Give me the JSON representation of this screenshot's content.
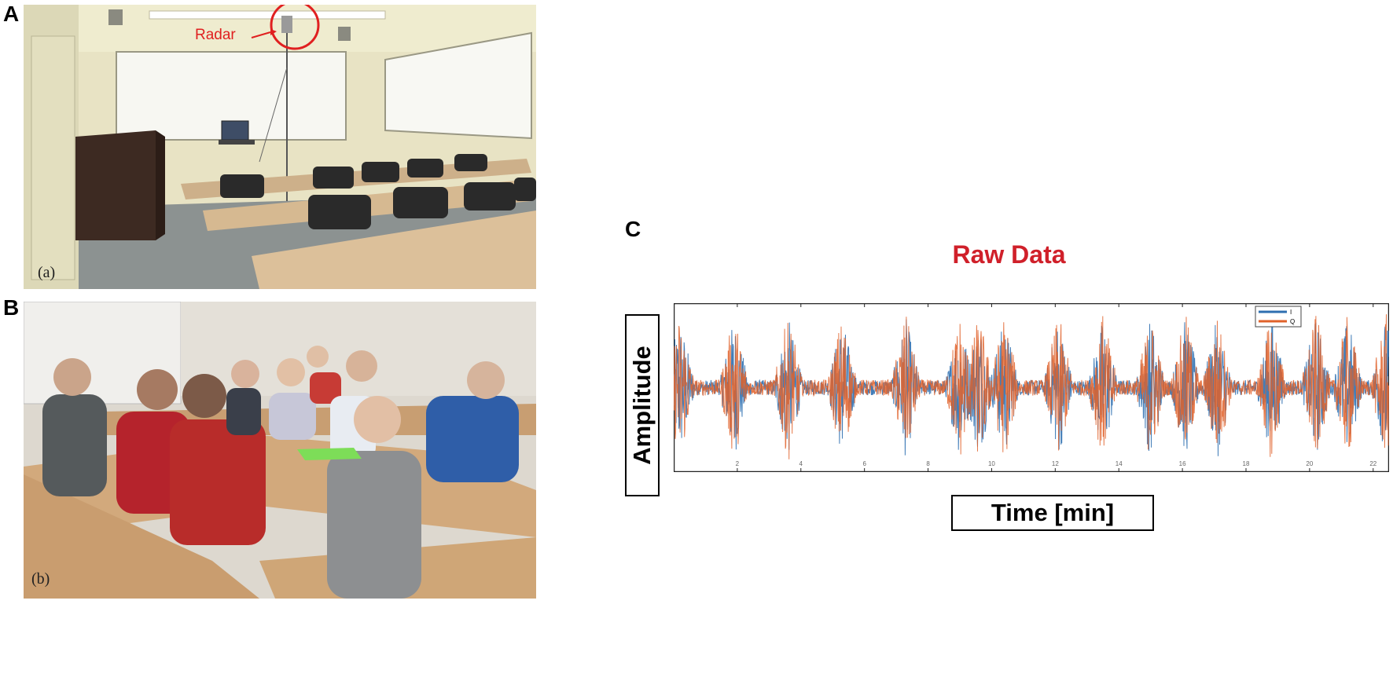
{
  "panels": {
    "a": {
      "letter": "A",
      "caption": "(a)",
      "annotation": "Radar"
    },
    "b": {
      "letter": "B",
      "caption": "(b)"
    },
    "c": {
      "letter": "C"
    }
  },
  "chart_data": {
    "type": "line",
    "title": "Raw Data",
    "xlabel": "Time [min]",
    "ylabel": "Amplitude",
    "series": [
      {
        "name": "I",
        "color": "#2e6fb0"
      },
      {
        "name": "Q",
        "color": "#e0622a"
      }
    ],
    "x_ticks": [
      "2",
      "4",
      "6",
      "8",
      "10",
      "12",
      "14",
      "16",
      "18",
      "20",
      "22"
    ],
    "xlim": [
      0,
      22.5
    ],
    "ylim": [
      -1,
      1
    ],
    "grid": false,
    "legend_position": "top-right",
    "bursts_min": [
      0.2,
      1.9,
      3.6,
      5.3,
      7.3,
      9.0,
      9.6,
      10.4,
      12.1,
      13.5,
      15.0,
      16.1,
      17.1,
      18.8,
      20.2,
      21.2,
      22.4
    ]
  },
  "colors": {
    "title_red": "#d0202a",
    "annotation_red": "#e02020",
    "series_i": "#2e6fb0",
    "series_q": "#e0622a"
  }
}
